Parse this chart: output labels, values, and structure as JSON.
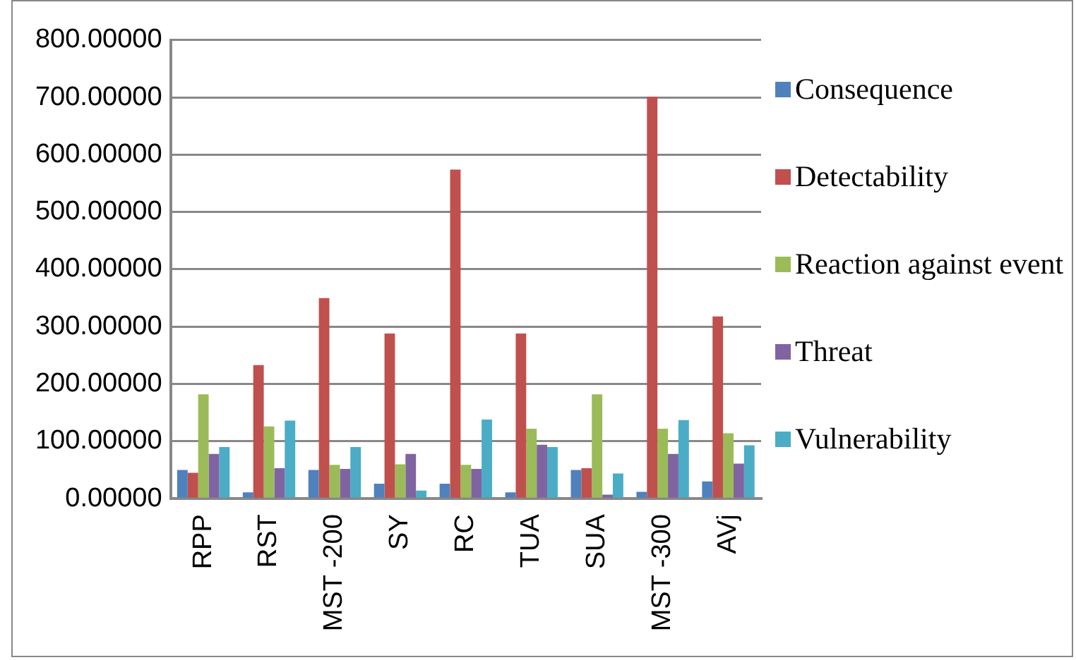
{
  "chart_data": {
    "type": "bar",
    "categories": [
      "RPP",
      "RST",
      "MST -200",
      "SY",
      "RC",
      "TUA",
      "SUA",
      "MST -300",
      "AVj"
    ],
    "series": [
      {
        "name": "Consequence",
        "color": "#4f81bd",
        "values": [
          50,
          11,
          50,
          26,
          26,
          11,
          50,
          12,
          30
        ]
      },
      {
        "name": "Detectability",
        "color": "#c0504d",
        "values": [
          45,
          233,
          350,
          288,
          574,
          288,
          53,
          701,
          318
        ]
      },
      {
        "name": "Reaction against event",
        "color": "#9bbb59",
        "values": [
          182,
          126,
          59,
          60,
          59,
          122,
          182,
          122,
          114
        ]
      },
      {
        "name": "Threat",
        "color": "#8064a2",
        "values": [
          78,
          53,
          52,
          78,
          52,
          94,
          7,
          78,
          61
        ]
      },
      {
        "name": "Vulnerability",
        "color": "#4bacc6",
        "values": [
          90,
          136,
          90,
          14,
          138,
          90,
          44,
          137,
          93
        ]
      }
    ],
    "ylim": [
      0,
      800
    ],
    "yticks": [
      {
        "value": 0,
        "label": "0.00000"
      },
      {
        "value": 100,
        "label": "100.00000"
      },
      {
        "value": 200,
        "label": "200.00000"
      },
      {
        "value": 300,
        "label": "300.00000"
      },
      {
        "value": 400,
        "label": "400.00000"
      },
      {
        "value": 500,
        "label": "500.00000"
      },
      {
        "value": 600,
        "label": "600.00000"
      },
      {
        "value": 700,
        "label": "700.00000"
      },
      {
        "value": 800,
        "label": "800.00000"
      }
    ],
    "grid": "y",
    "legend": "right"
  }
}
